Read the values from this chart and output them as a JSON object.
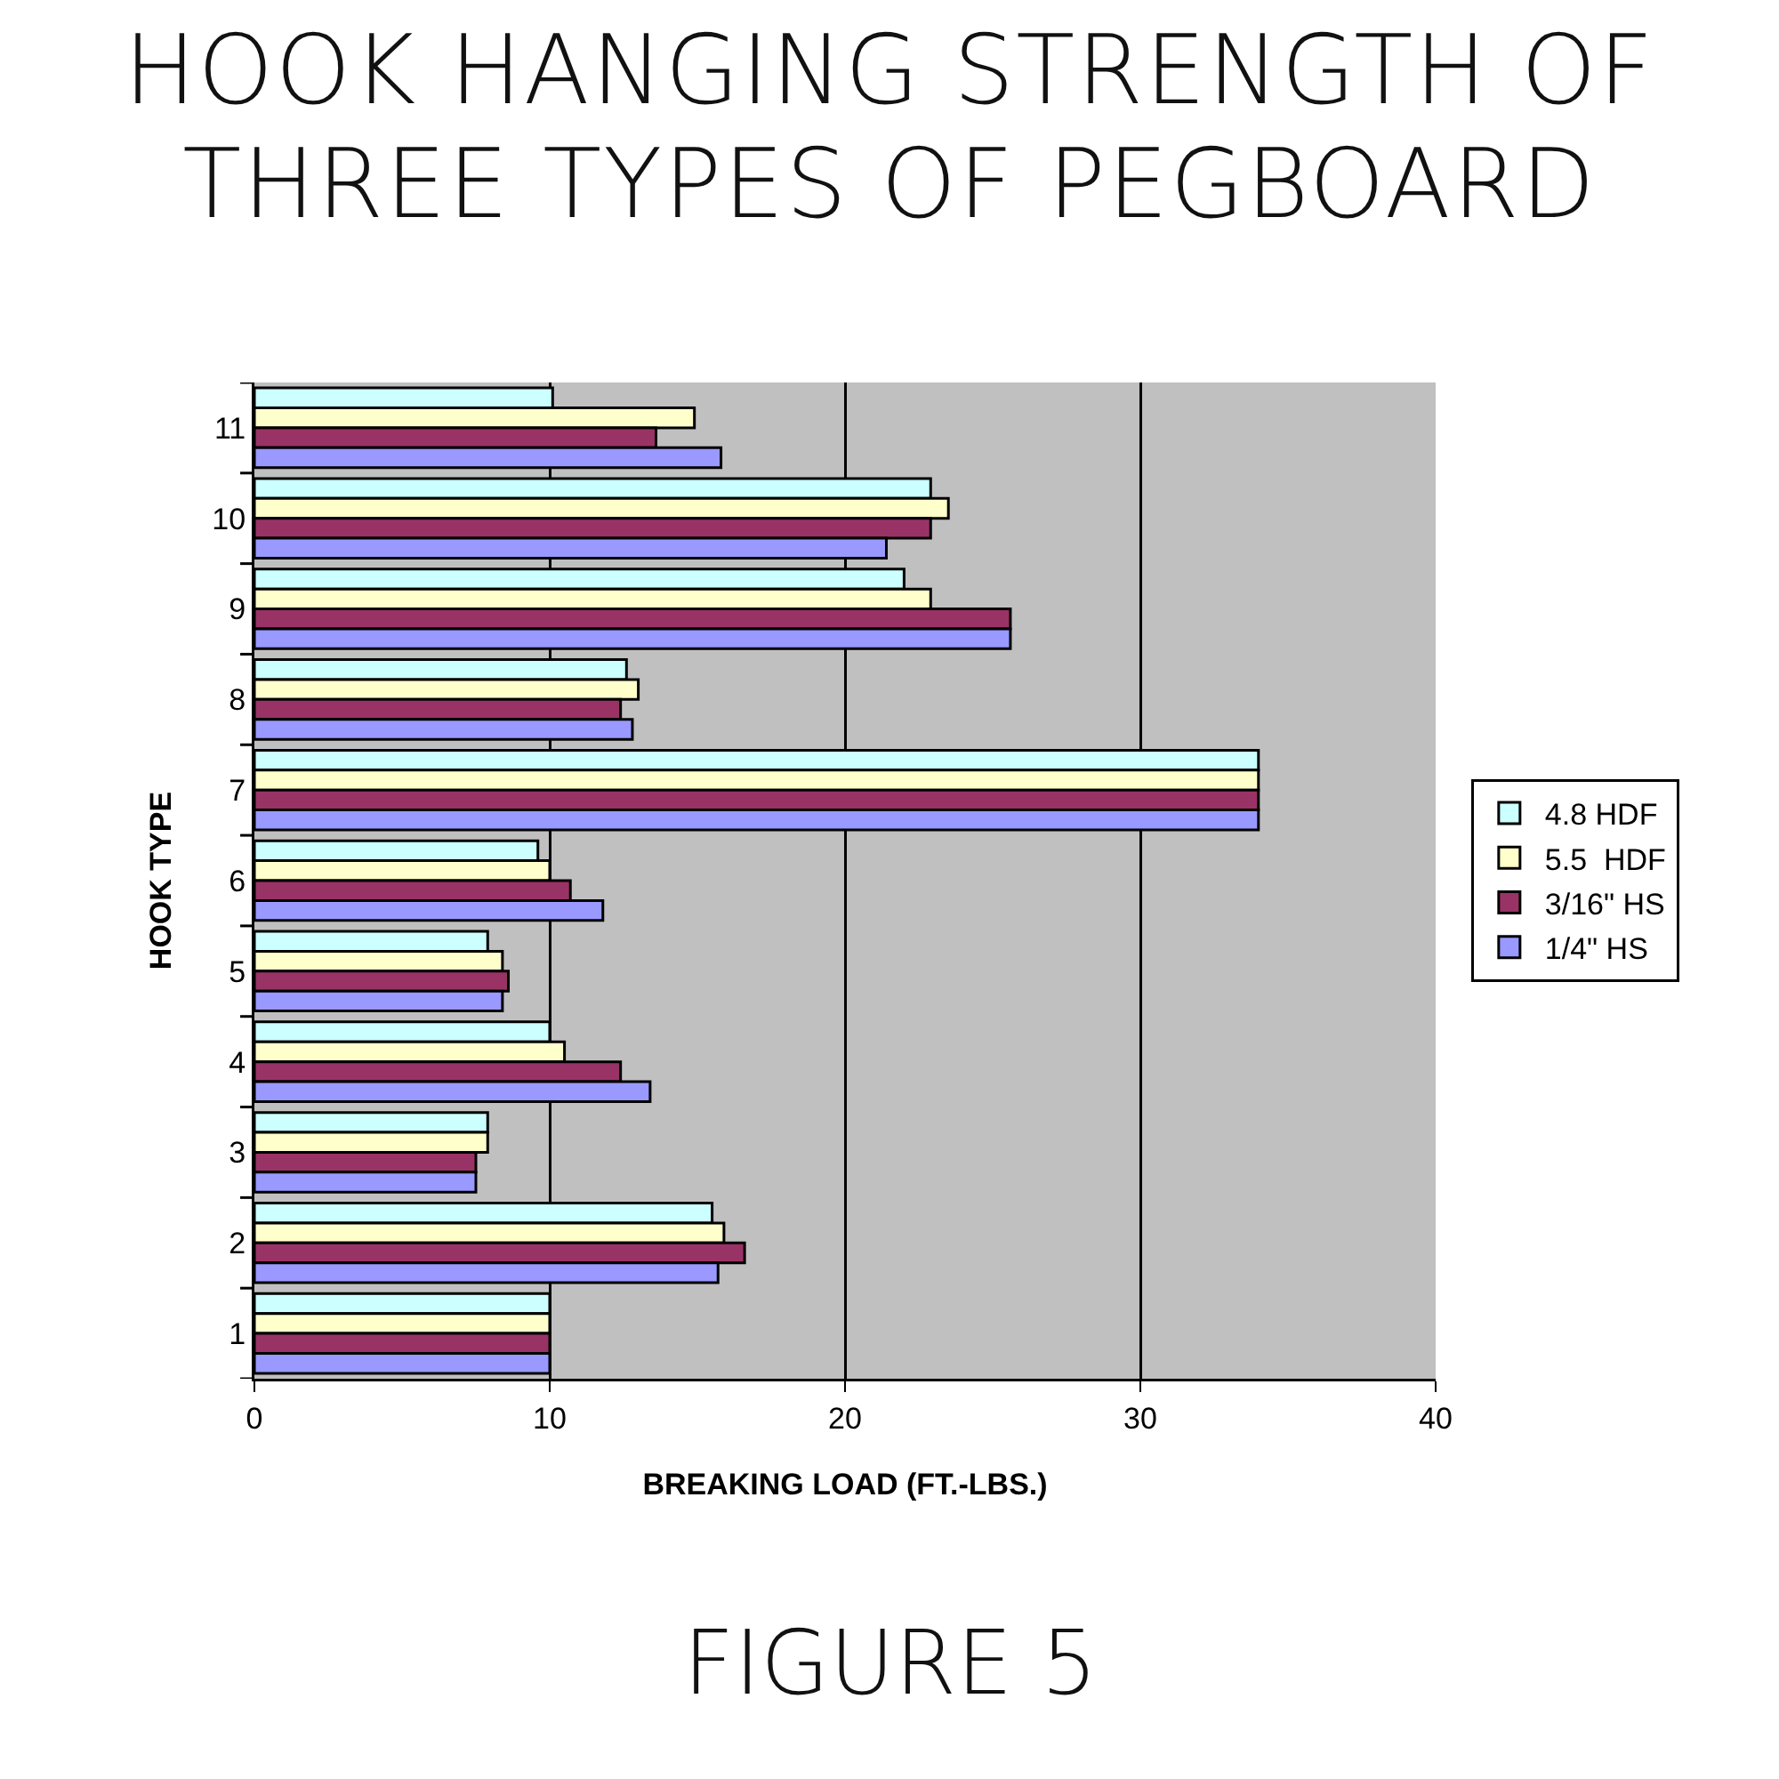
{
  "chart_data": {
    "type": "bar",
    "orientation": "horizontal",
    "title": "HOOK HANGING STRENGTH OF THREE TYPES OF PEGBOARD",
    "xlabel": "BREAKING LOAD (FT.-LBS.)",
    "ylabel": "HOOK TYPE",
    "annotations": [
      "FIGURE 5"
    ],
    "categories": [
      "11",
      "10",
      "9",
      "8",
      "7",
      "6",
      "5",
      "4",
      "3",
      "2",
      "1"
    ],
    "series": [
      {
        "name": "4.8 HDF",
        "color": "#ccffff",
        "values": [
          10.1,
          22.9,
          22.0,
          12.6,
          34,
          9.6,
          7.9,
          10,
          7.9,
          15.5,
          10
        ]
      },
      {
        "name": "5.5  HDF",
        "color": "#ffffcc",
        "values": [
          14.9,
          23.5,
          22.9,
          13.0,
          34,
          10,
          8.4,
          10.5,
          7.9,
          15.9,
          10
        ]
      },
      {
        "name": "3/16\" HS",
        "color": "#993366",
        "values": [
          13.6,
          22.9,
          25.6,
          12.4,
          34,
          10.7,
          8.6,
          12.4,
          7.5,
          16.6,
          10
        ]
      },
      {
        "name": "1/4\" HS",
        "color": "#9999ff",
        "values": [
          15.8,
          21.4,
          25.6,
          12.8,
          34,
          11.8,
          8.4,
          13.4,
          7.5,
          15.7,
          10
        ]
      }
    ],
    "xlim": [
      0,
      40
    ],
    "xticks": [
      0,
      10,
      20,
      30,
      40
    ],
    "grid": "x",
    "legend": "right"
  }
}
